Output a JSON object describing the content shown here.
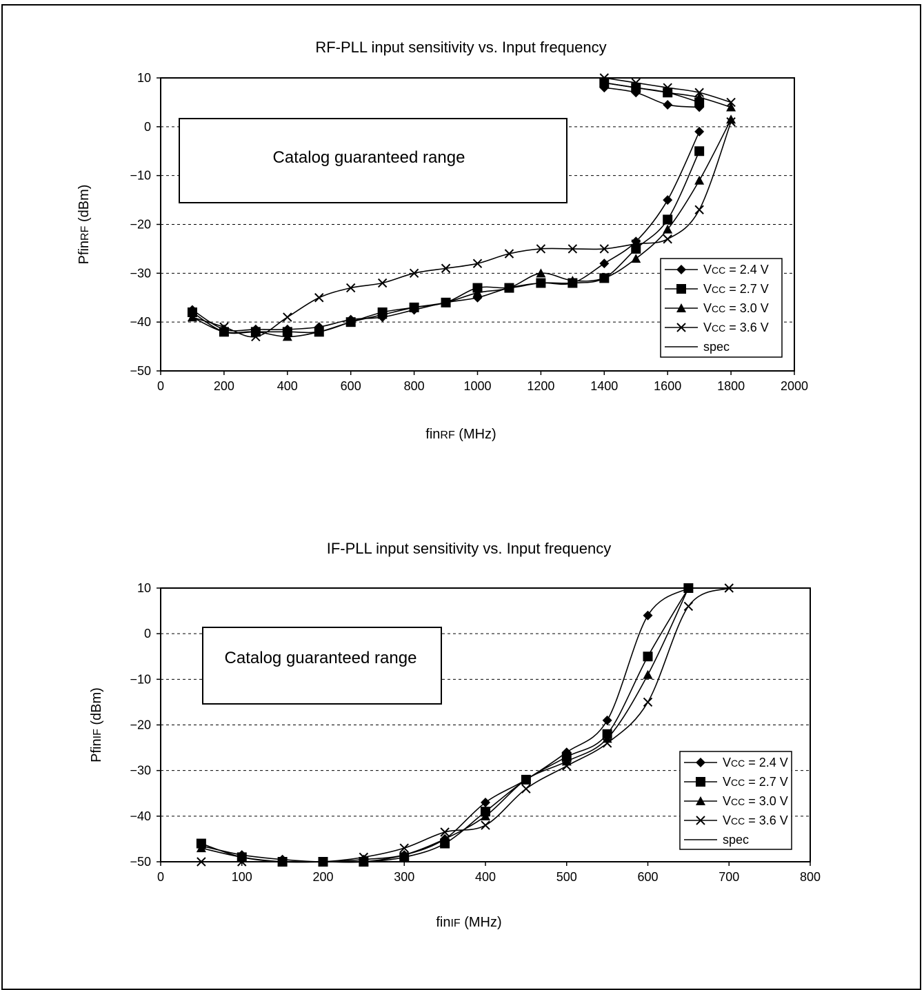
{
  "chart_data": [
    {
      "type": "line",
      "title": "RF-PLL input sensitivity vs. Input frequency",
      "xlabel": "finRF (MHz)",
      "ylabel": "PfinRF (dBm)",
      "xlabel_parts": {
        "main": "fin",
        "sub": "RF",
        "unit": " (MHz)"
      },
      "ylabel_parts": {
        "main": "Pfin",
        "sub": "RF",
        "unit": " (dBm)"
      },
      "xlim": [
        0,
        2000
      ],
      "ylim": [
        -50,
        10
      ],
      "xticks": [
        0,
        200,
        400,
        600,
        800,
        1000,
        1200,
        1400,
        1600,
        1800,
        2000
      ],
      "yticks": [
        10,
        0,
        -10,
        -20,
        -30,
        -40,
        -50
      ],
      "ytick_labels": [
        "10",
        "0",
        "−10",
        "−20",
        "−30",
        "−40",
        "−50"
      ],
      "grid": "horizontal dashed",
      "legend_position": "right",
      "guaranteed_range_label": "Catalog guaranteed range",
      "series": [
        {
          "name": "Vcc = 2.4 V",
          "marker": "diamond",
          "lower": {
            "x": [
              100,
              200,
              300,
              400,
              500,
              600,
              700,
              800,
              900,
              1000,
              1100,
              1200,
              1300,
              1400,
              1500,
              1600,
              1700
            ],
            "y": [
              -37.5,
              -41.5,
              -41.5,
              -41.5,
              -41,
              -39.5,
              -39,
              -37.5,
              -36,
              -35,
              -33,
              -32,
              -32,
              -28,
              -23.5,
              -15,
              -1
            ]
          },
          "upper": {
            "x": [
              1400,
              1500,
              1600,
              1700
            ],
            "y": [
              8,
              7,
              4.5,
              4
            ]
          }
        },
        {
          "name": "Vcc = 2.7 V",
          "marker": "square",
          "lower": {
            "x": [
              100,
              200,
              300,
              400,
              500,
              600,
              700,
              800,
              900,
              1000,
              1100,
              1200,
              1300,
              1400,
              1500,
              1600,
              1700
            ],
            "y": [
              -38,
              -42,
              -42,
              -42,
              -42,
              -40,
              -38,
              -37,
              -36,
              -33,
              -33,
              -32,
              -32,
              -31,
              -25,
              -19,
              -5
            ]
          },
          "upper": {
            "x": [
              1400,
              1500,
              1600,
              1700
            ],
            "y": [
              9,
              8,
              7,
              5
            ]
          }
        },
        {
          "name": "Vcc = 3.0 V",
          "marker": "triangle",
          "lower": {
            "x": [
              100,
              200,
              300,
              400,
              500,
              600,
              700,
              800,
              900,
              1000,
              1100,
              1200,
              1300,
              1400,
              1500,
              1600,
              1700,
              1800
            ],
            "y": [
              -39,
              -42,
              -42,
              -43,
              -42,
              -40,
              -38.5,
              -37,
              -36,
              -34,
              -33,
              -30,
              -31.5,
              -31,
              -27,
              -21,
              -11,
              1.5
            ]
          },
          "upper": {
            "x": [
              1400,
              1500,
              1600,
              1700,
              1800
            ],
            "y": [
              9,
              8,
              7,
              6,
              4
            ]
          }
        },
        {
          "name": "Vcc = 3.6 V",
          "marker": "cross",
          "lower": {
            "x": [
              100,
              200,
              300,
              400,
              500,
              600,
              700,
              800,
              900,
              1000,
              1100,
              1200,
              1300,
              1400,
              1500,
              1600,
              1700,
              1800
            ],
            "y": [
              -39,
              -41,
              -43,
              -39,
              -35,
              -33,
              -32,
              -30,
              -29,
              -28,
              -26,
              -25,
              -25,
              -25,
              -24,
              -23,
              -17,
              1
            ]
          },
          "upper": {
            "x": [
              1400,
              1500,
              1600,
              1700,
              1800
            ],
            "y": [
              10,
              9,
              8,
              7,
              5
            ]
          }
        }
      ]
    },
    {
      "type": "line",
      "title": "IF-PLL input sensitivity vs. Input frequency",
      "xlabel": "finIF (MHz)",
      "ylabel": "PfinIF (dBm)",
      "xlabel_parts": {
        "main": "fin",
        "sub": "IF",
        "unit": " (MHz)"
      },
      "ylabel_parts": {
        "main": "Pfin",
        "sub": "IF",
        "unit": " (dBm)"
      },
      "xlim": [
        0,
        800
      ],
      "ylim": [
        -50,
        10
      ],
      "xticks": [
        0,
        100,
        200,
        300,
        400,
        500,
        600,
        700,
        800
      ],
      "yticks": [
        10,
        0,
        -10,
        -20,
        -30,
        -40,
        -50
      ],
      "ytick_labels": [
        "10",
        "0",
        "−10",
        "−20",
        "−30",
        "−40",
        "−50"
      ],
      "grid": "horizontal dashed",
      "legend_position": "right",
      "guaranteed_range_label": "Catalog guaranteed range",
      "series": [
        {
          "name": "Vcc = 2.4 V",
          "marker": "diamond",
          "lower": {
            "x": [
              50,
              100,
              150,
              200,
              250,
              300,
              350,
              400,
              450,
              500,
              550,
              600,
              650
            ],
            "y": [
              -46.5,
              -48.5,
              -49.5,
              -50,
              -49.5,
              -48.5,
              -45,
              -37,
              -32,
              -26,
              -19,
              4,
              10
            ]
          }
        },
        {
          "name": "Vcc = 2.7 V",
          "marker": "square",
          "lower": {
            "x": [
              50,
              100,
              150,
              200,
              250,
              300,
              350,
              400,
              450,
              500,
              550,
              600,
              650
            ],
            "y": [
              -46,
              -49,
              -50,
              -50,
              -50,
              -49,
              -46,
              -39,
              -32,
              -27,
              -22,
              -5,
              10
            ]
          }
        },
        {
          "name": "Vcc = 3.0 V",
          "marker": "triangle",
          "lower": {
            "x": [
              50,
              100,
              150,
              200,
              250,
              300,
              350,
              400,
              450,
              500,
              550,
              600,
              650
            ],
            "y": [
              -47,
              -49,
              -50,
              -50,
              -50,
              -48.5,
              -45,
              -40,
              -32,
              -28,
              -23,
              -9,
              10
            ]
          }
        },
        {
          "name": "Vcc = 3.6 V",
          "marker": "cross",
          "lower": {
            "x": [
              50,
              100,
              150,
              200,
              250,
              300,
              350,
              400,
              450,
              500,
              550,
              600,
              650,
              700
            ],
            "y": [
              -50,
              -50,
              -50,
              -50,
              -49,
              -47,
              -43.5,
              -42,
              -34,
              -29,
              -24,
              -15,
              6,
              10
            ]
          }
        }
      ]
    }
  ],
  "legend": {
    "entries": [
      {
        "prefix": "V",
        "sub": "CC",
        "value": " = 2.4 V",
        "marker": "diamond"
      },
      {
        "prefix": "V",
        "sub": "CC",
        "value": " = 2.7 V",
        "marker": "square"
      },
      {
        "prefix": "V",
        "sub": "CC",
        "value": " = 3.0 V",
        "marker": "triangle"
      },
      {
        "prefix": "V",
        "sub": "CC",
        "value": " = 3.6 V",
        "marker": "cross"
      },
      {
        "prefix": "spec",
        "sub": "",
        "value": "",
        "marker": "line"
      }
    ]
  },
  "colors": {
    "line": "#000000",
    "background": "#ffffff",
    "grid": "#000000"
  }
}
